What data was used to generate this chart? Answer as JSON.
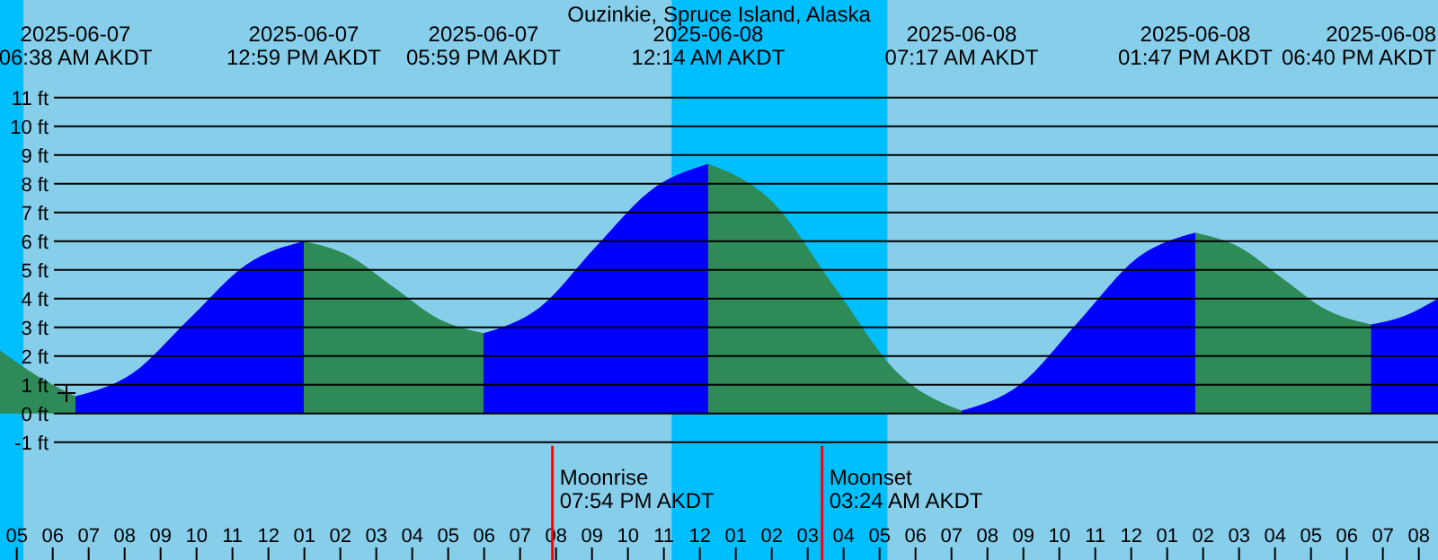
{
  "chart_data": {
    "type": "area",
    "title": "Ouzinkie, Spruce Island, Alaska",
    "xlim": [
      "2025-06-07T04:32",
      "2025-06-08T20:32"
    ],
    "xticks": [
      {
        "value": "2025-06-07T05:00",
        "label": "05"
      },
      {
        "value": "2025-06-07T06:00",
        "label": "06"
      },
      {
        "value": "2025-06-07T07:00",
        "label": "07"
      },
      {
        "value": "2025-06-07T08:00",
        "label": "08"
      },
      {
        "value": "2025-06-07T09:00",
        "label": "09"
      },
      {
        "value": "2025-06-07T10:00",
        "label": "10"
      },
      {
        "value": "2025-06-07T11:00",
        "label": "11"
      },
      {
        "value": "2025-06-07T12:00",
        "label": "12"
      },
      {
        "value": "2025-06-07T13:00",
        "label": "01"
      },
      {
        "value": "2025-06-07T14:00",
        "label": "02"
      },
      {
        "value": "2025-06-07T15:00",
        "label": "03"
      },
      {
        "value": "2025-06-07T16:00",
        "label": "04"
      },
      {
        "value": "2025-06-07T17:00",
        "label": "05"
      },
      {
        "value": "2025-06-07T18:00",
        "label": "06"
      },
      {
        "value": "2025-06-07T19:00",
        "label": "07"
      },
      {
        "value": "2025-06-07T20:00",
        "label": "08"
      },
      {
        "value": "2025-06-07T21:00",
        "label": "09"
      },
      {
        "value": "2025-06-07T22:00",
        "label": "10"
      },
      {
        "value": "2025-06-07T23:00",
        "label": "11"
      },
      {
        "value": "2025-06-08T00:00",
        "label": "12"
      },
      {
        "value": "2025-06-08T01:00",
        "label": "01"
      },
      {
        "value": "2025-06-08T02:00",
        "label": "02"
      },
      {
        "value": "2025-06-08T03:00",
        "label": "03"
      },
      {
        "value": "2025-06-08T04:00",
        "label": "04"
      },
      {
        "value": "2025-06-08T05:00",
        "label": "05"
      },
      {
        "value": "2025-06-08T06:00",
        "label": "06"
      },
      {
        "value": "2025-06-08T07:00",
        "label": "07"
      },
      {
        "value": "2025-06-08T08:00",
        "label": "08"
      },
      {
        "value": "2025-06-08T09:00",
        "label": "09"
      },
      {
        "value": "2025-06-08T10:00",
        "label": "10"
      },
      {
        "value": "2025-06-08T11:00",
        "label": "11"
      },
      {
        "value": "2025-06-08T12:00",
        "label": "12"
      },
      {
        "value": "2025-06-08T13:00",
        "label": "01"
      },
      {
        "value": "2025-06-08T14:00",
        "label": "02"
      },
      {
        "value": "2025-06-08T15:00",
        "label": "03"
      },
      {
        "value": "2025-06-08T16:00",
        "label": "04"
      },
      {
        "value": "2025-06-08T17:00",
        "label": "05"
      },
      {
        "value": "2025-06-08T18:00",
        "label": "06"
      },
      {
        "value": "2025-06-08T19:00",
        "label": "07"
      },
      {
        "value": "2025-06-08T20:00",
        "label": "08"
      }
    ],
    "ylim": [
      -5.1,
      14.4
    ],
    "yticks": [
      {
        "value": -1,
        "label": "-1 ft"
      },
      {
        "value": 0,
        "label": "0 ft"
      },
      {
        "value": 1,
        "label": "1 ft"
      },
      {
        "value": 2,
        "label": "2 ft"
      },
      {
        "value": 3,
        "label": "3 ft"
      },
      {
        "value": 4,
        "label": "4 ft"
      },
      {
        "value": 5,
        "label": "5 ft"
      },
      {
        "value": 6,
        "label": "6 ft"
      },
      {
        "value": 7,
        "label": "7 ft"
      },
      {
        "value": 8,
        "label": "8 ft"
      },
      {
        "value": 9,
        "label": "9 ft"
      },
      {
        "value": 10,
        "label": "10 ft"
      },
      {
        "value": 11,
        "label": "11 ft"
      }
    ],
    "grid": "y",
    "bands": [
      {
        "axis": "x",
        "from": "2025-06-07T04:32",
        "to": "2025-06-07T05:11",
        "color": "#00bfff"
      },
      {
        "axis": "x",
        "from": "2025-06-07T23:13",
        "to": "2025-06-08T05:13",
        "color": "#00bfff"
      }
    ],
    "series": [
      {
        "color": "#2e8b57",
        "x": [
          "2025-06-07T04:32",
          "2025-06-07T05:35",
          "2025-06-07T06:38"
        ],
        "values": [
          2.2,
          1.3,
          0.6
        ]
      },
      {
        "color": "#0000ff",
        "x": [
          "2025-06-07T06:38",
          "2025-06-07T08:13",
          "2025-06-07T09:48",
          "2025-06-07T11:24",
          "2025-06-07T12:59"
        ],
        "values": [
          0.6,
          1.4,
          3.3,
          5.2,
          6.0
        ]
      },
      {
        "color": "#2e8b57",
        "x": [
          "2025-06-07T12:59",
          "2025-06-07T14:14",
          "2025-06-07T15:29",
          "2025-06-07T16:44",
          "2025-06-07T17:59"
        ],
        "values": [
          6.0,
          5.5,
          4.4,
          3.3,
          2.8
        ]
      },
      {
        "color": "#0000ff",
        "x": [
          "2025-06-07T17:59",
          "2025-06-07T19:33",
          "2025-06-07T21:06",
          "2025-06-07T22:40",
          "2025-06-08T00:14"
        ],
        "values": [
          2.8,
          3.7,
          5.8,
          7.8,
          8.7
        ]
      },
      {
        "color": "#2e8b57",
        "x": [
          "2025-06-08T00:14",
          "2025-06-08T02:00",
          "2025-06-08T03:45",
          "2025-06-08T05:31",
          "2025-06-08T07:17"
        ],
        "values": [
          8.7,
          7.4,
          4.4,
          1.4,
          0.1
        ]
      },
      {
        "color": "#0000ff",
        "x": [
          "2025-06-08T07:17",
          "2025-06-08T08:54",
          "2025-06-08T10:32",
          "2025-06-08T12:09",
          "2025-06-08T13:47"
        ],
        "values": [
          0.1,
          1.0,
          3.2,
          5.4,
          6.3
        ]
      },
      {
        "color": "#2e8b57",
        "x": [
          "2025-06-08T13:47",
          "2025-06-08T15:00",
          "2025-06-08T16:13",
          "2025-06-08T17:27",
          "2025-06-08T18:40"
        ],
        "values": [
          6.3,
          5.8,
          4.7,
          3.6,
          3.1
        ]
      },
      {
        "color": "#0000ff",
        "x": [
          "2025-06-08T18:40",
          "2025-06-08T19:36",
          "2025-06-08T20:32"
        ],
        "values": [
          3.1,
          3.4,
          4.0
        ]
      }
    ],
    "annotations": [
      "2025-06-07\n06:38 AM AKDT",
      "2025-06-07\n12:59 PM AKDT",
      "2025-06-07\n05:59 PM AKDT",
      "2025-06-08\n12:14 AM AKDT",
      "2025-06-08\n07:17 AM AKDT",
      "2025-06-08\n01:47 PM AKDT",
      "2025-06-08\n06:40 PM AKDT"
    ],
    "ref_lines": [
      {
        "axis": "x",
        "value": "2025-06-07T19:54",
        "label": "Moonrise\n07:54 PM AKDT",
        "color": "#ff0000"
      },
      {
        "axis": "x",
        "value": "2025-06-08T03:24",
        "label": "Moonset\n03:24 AM AKDT",
        "color": "#ff0000"
      }
    ]
  }
}
